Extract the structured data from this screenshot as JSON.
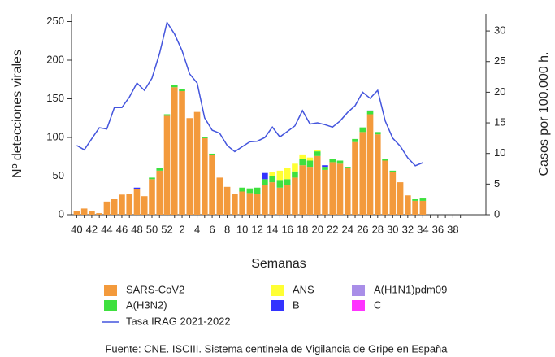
{
  "chart_data": {
    "type": "bar",
    "stacked": true,
    "x_label": "Semanas",
    "y_label": "Nº detecciones virales",
    "y2_label": "Casos por 100.000 h.",
    "source": "Fuente: CNE. ISCIII. Sistema centinela de Vigilancia de Gripe en España",
    "categories": [
      "40",
      null,
      "42",
      null,
      "44",
      null,
      "46",
      null,
      "48",
      null,
      "50",
      null,
      "52",
      null,
      "2",
      null,
      "4",
      null,
      "6",
      null,
      "8",
      null,
      "10",
      null,
      "12",
      null,
      "14",
      null,
      "16",
      null,
      "18",
      null,
      "20",
      null,
      "22",
      null,
      "24",
      null,
      "26",
      null,
      "28",
      null,
      "30",
      null,
      "32",
      null,
      "34",
      null,
      "36",
      null,
      "38",
      null
    ],
    "ylim": [
      0,
      260
    ],
    "yticks": [
      0,
      50,
      100,
      150,
      200,
      250
    ],
    "y2lim": [
      0,
      32.8
    ],
    "y2ticks": [
      0,
      5,
      10,
      15,
      20,
      25,
      30
    ],
    "series": [
      {
        "name": "SARS-CoV2",
        "color": "#f39a3c",
        "values": [
          5,
          8,
          5,
          2,
          17,
          20,
          26,
          27,
          33,
          24,
          46,
          57,
          128,
          165,
          160,
          125,
          133,
          99,
          77,
          48,
          36,
          27,
          30,
          28,
          27,
          38,
          42,
          35,
          38,
          48,
          64,
          62,
          76,
          58,
          68,
          66,
          60,
          94,
          107,
          130,
          104,
          70,
          55,
          42,
          25,
          18,
          18,
          0,
          0,
          0,
          0,
          0
        ]
      },
      {
        "name": "A(H3N2)",
        "color": "#3ee03e",
        "values": [
          0,
          0,
          0,
          0,
          0,
          0,
          0,
          0,
          0,
          0,
          2,
          3,
          2,
          3,
          3,
          0,
          0,
          1,
          2,
          0,
          0,
          0,
          5,
          6,
          8,
          8,
          8,
          10,
          8,
          8,
          8,
          8,
          6,
          4,
          4,
          4,
          2,
          4,
          6,
          4,
          3,
          2,
          2,
          0,
          0,
          2,
          3,
          0,
          0,
          0,
          0,
          0
        ]
      },
      {
        "name": "ANS",
        "color": "#ffff33",
        "values": [
          0,
          0,
          0,
          0,
          0,
          0,
          0,
          0,
          0,
          0,
          0,
          0,
          0,
          0,
          0,
          0,
          0,
          0,
          0,
          0,
          0,
          0,
          0,
          0,
          0,
          0,
          5,
          12,
          14,
          10,
          6,
          4,
          2,
          0,
          0,
          0,
          0,
          0,
          0,
          0,
          0,
          0,
          0,
          0,
          0,
          0,
          0,
          0,
          0,
          0,
          0,
          0
        ]
      },
      {
        "name": "B",
        "color": "#3333ff",
        "values": [
          0,
          0,
          0,
          0,
          0,
          0,
          0,
          0,
          2,
          0,
          0,
          0,
          0,
          0,
          0,
          0,
          0,
          0,
          0,
          0,
          0,
          0,
          0,
          0,
          0,
          8,
          0,
          0,
          0,
          0,
          0,
          0,
          0,
          2,
          0,
          0,
          0,
          0,
          0,
          0,
          0,
          0,
          0,
          0,
          0,
          0,
          0,
          0,
          0,
          0,
          0,
          0
        ]
      },
      {
        "name": "A(H1N1)pdm09",
        "color": "#a98ee8",
        "values": [
          0,
          0,
          0,
          0,
          0,
          0,
          0,
          0,
          0,
          0,
          0,
          0,
          0,
          0,
          0,
          0,
          0,
          0,
          0,
          0,
          0,
          0,
          0,
          0,
          0,
          0,
          0,
          0,
          0,
          0,
          0,
          0,
          0,
          0,
          0,
          0,
          0,
          0,
          0,
          1,
          0,
          0,
          0,
          0,
          0,
          0,
          0,
          0,
          0,
          0,
          0,
          0
        ]
      },
      {
        "name": "C",
        "color": "#ff33ff",
        "values": [
          0,
          0,
          0,
          0,
          0,
          0,
          0,
          0,
          0,
          0,
          0,
          0,
          0,
          0,
          0,
          0,
          0,
          0,
          0,
          0,
          0,
          0,
          0,
          0,
          0,
          0,
          0,
          0,
          0,
          0,
          0,
          0,
          0,
          0,
          0,
          0,
          0,
          0,
          0,
          0,
          0,
          0,
          0,
          0,
          0,
          0,
          0,
          0,
          0,
          0,
          0,
          0
        ]
      },
      {
        "name": "Tasa IRAG 2021-2022",
        "color": "#4455dd",
        "axis": "y2",
        "type": "line",
        "values": [
          11.3,
          10.6,
          12.4,
          14.2,
          14.0,
          17.5,
          17.5,
          19.2,
          21.5,
          20.3,
          22.3,
          26.3,
          31.4,
          29.5,
          26.8,
          23.0,
          21.5,
          15.8,
          13.8,
          13.3,
          11.3,
          10.3,
          11.1,
          11.9,
          12.0,
          12.6,
          14.3,
          12.7,
          13.6,
          14.5,
          17.0,
          14.8,
          15.0,
          14.7,
          14.3,
          15.3,
          16.7,
          17.8,
          20.0,
          19.0,
          20.3,
          15.3,
          12.5,
          11.2,
          9.3,
          8.0,
          8.5,
          null,
          null,
          null,
          null,
          null
        ]
      }
    ]
  }
}
